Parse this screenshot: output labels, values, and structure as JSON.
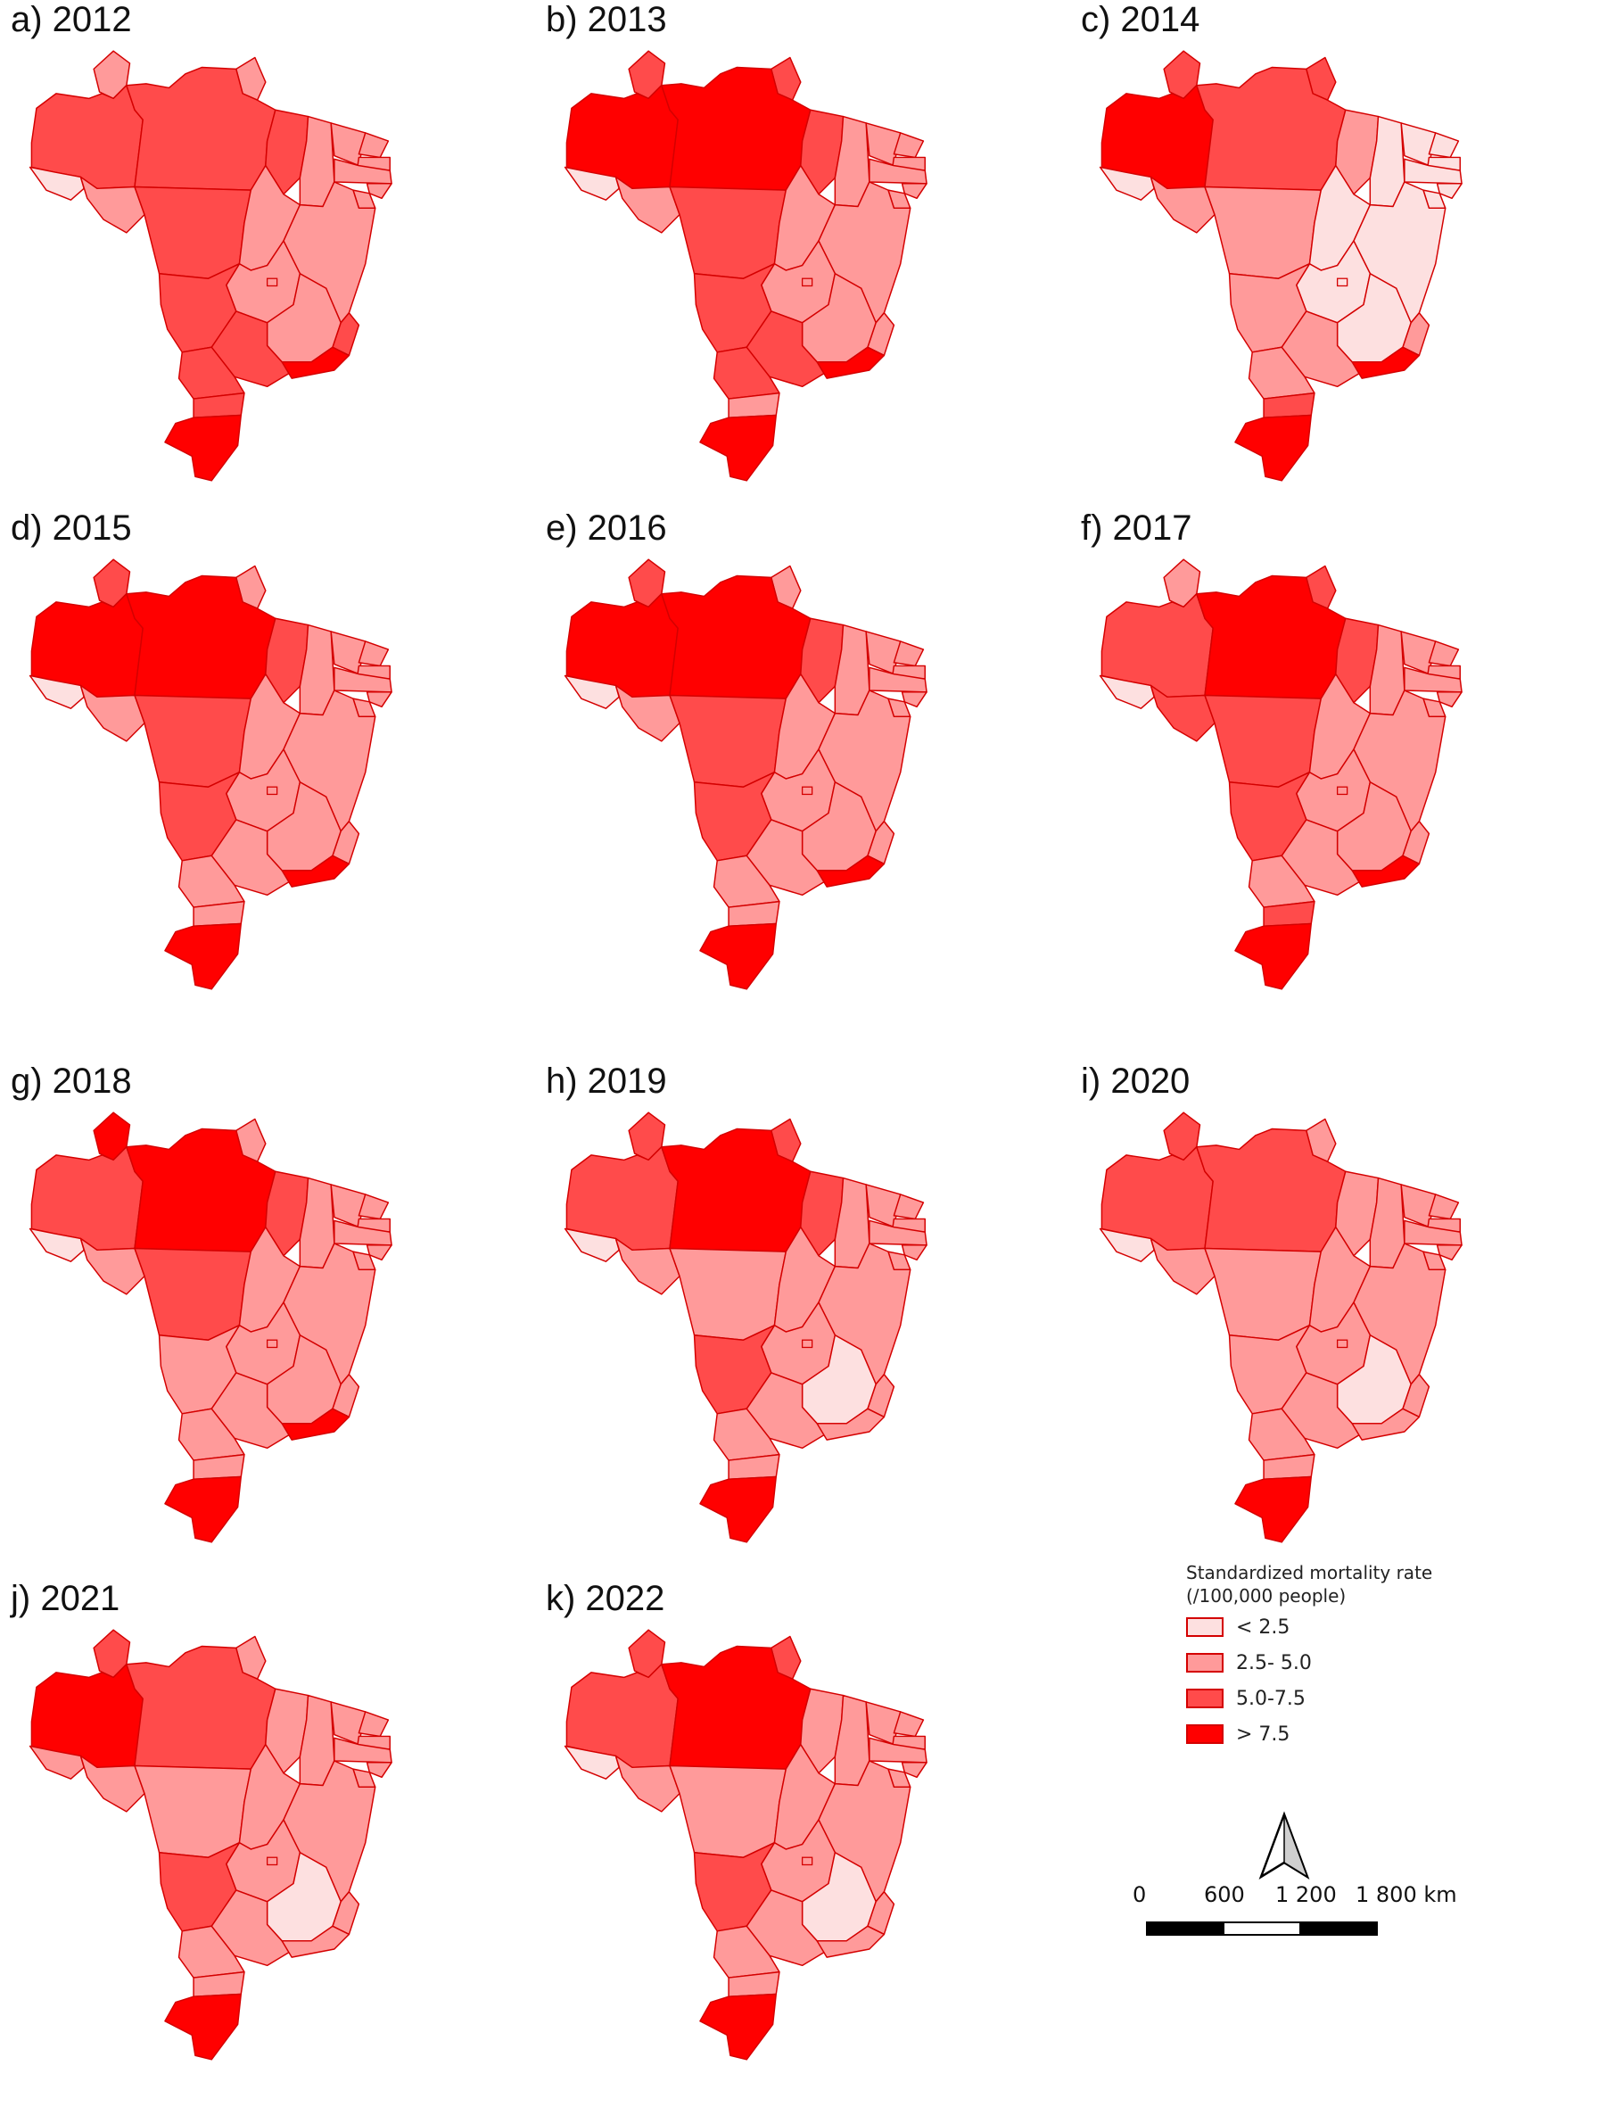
{
  "classes": [
    {
      "label": "< 2.5",
      "color": "#fde0e0"
    },
    {
      "label": "2.5- 5.0",
      "color": "#ff9a9a"
    },
    {
      "label": "5.0-7.5",
      "color": "#ff4b4b"
    },
    {
      "label": "> 7.5",
      "color": "#ff0000"
    }
  ],
  "border_color": "#d40000",
  "panels": [
    {
      "title": "a) 2012",
      "classes": {
        "AM": 2,
        "RR": 1,
        "PA": 2,
        "AP": 1,
        "AC": 0,
        "RO": 1,
        "MT": 2,
        "TO": 1,
        "MA": 2,
        "PI": 1,
        "CE": 1,
        "RN": 1,
        "PB": 1,
        "PE": 1,
        "AL": 1,
        "SE": 1,
        "BA": 1,
        "GO": 1,
        "MG": 1,
        "ES": 2,
        "MS": 2,
        "SP": 2,
        "RJ": 3,
        "PR": 2,
        "SC": 2,
        "RS": 3
      }
    },
    {
      "title": "b) 2013",
      "classes": {
        "AM": 3,
        "RR": 2,
        "PA": 3,
        "AP": 2,
        "AC": 0,
        "RO": 1,
        "MT": 2,
        "TO": 1,
        "MA": 2,
        "PI": 1,
        "CE": 1,
        "RN": 1,
        "PB": 1,
        "PE": 1,
        "AL": 1,
        "SE": 1,
        "BA": 1,
        "GO": 1,
        "MG": 1,
        "ES": 1,
        "MS": 2,
        "SP": 2,
        "RJ": 3,
        "PR": 2,
        "SC": 1,
        "RS": 3
      }
    },
    {
      "title": "c) 2014",
      "classes": {
        "AM": 3,
        "RR": 2,
        "PA": 2,
        "AP": 2,
        "AC": 0,
        "RO": 1,
        "MT": 1,
        "TO": 0,
        "MA": 1,
        "PI": 0,
        "CE": 0,
        "RN": 0,
        "PB": 0,
        "PE": 0,
        "AL": 0,
        "SE": 0,
        "BA": 0,
        "GO": 0,
        "MG": 0,
        "ES": 1,
        "MS": 1,
        "SP": 1,
        "RJ": 3,
        "PR": 1,
        "SC": 2,
        "RS": 3
      }
    },
    {
      "title": "d) 2015",
      "classes": {
        "AM": 3,
        "RR": 2,
        "PA": 3,
        "AP": 1,
        "AC": 0,
        "RO": 1,
        "MT": 2,
        "TO": 1,
        "MA": 2,
        "PI": 1,
        "CE": 1,
        "RN": 1,
        "PB": 1,
        "PE": 1,
        "AL": 1,
        "SE": 1,
        "BA": 1,
        "GO": 1,
        "MG": 1,
        "ES": 1,
        "MS": 2,
        "SP": 1,
        "RJ": 3,
        "PR": 1,
        "SC": 1,
        "RS": 3
      }
    },
    {
      "title": "e) 2016",
      "classes": {
        "AM": 3,
        "RR": 2,
        "PA": 3,
        "AP": 1,
        "AC": 0,
        "RO": 1,
        "MT": 2,
        "TO": 1,
        "MA": 2,
        "PI": 1,
        "CE": 1,
        "RN": 1,
        "PB": 1,
        "PE": 1,
        "AL": 1,
        "SE": 1,
        "BA": 1,
        "GO": 1,
        "MG": 1,
        "ES": 1,
        "MS": 2,
        "SP": 1,
        "RJ": 3,
        "PR": 1,
        "SC": 1,
        "RS": 3
      }
    },
    {
      "title": "f) 2017",
      "classes": {
        "AM": 2,
        "RR": 1,
        "PA": 3,
        "AP": 2,
        "AC": 0,
        "RO": 2,
        "MT": 2,
        "TO": 1,
        "MA": 2,
        "PI": 1,
        "CE": 1,
        "RN": 1,
        "PB": 1,
        "PE": 1,
        "AL": 1,
        "SE": 1,
        "BA": 1,
        "GO": 1,
        "MG": 1,
        "ES": 1,
        "MS": 2,
        "SP": 1,
        "RJ": 3,
        "PR": 1,
        "SC": 2,
        "RS": 3
      }
    },
    {
      "title": "g) 2018",
      "classes": {
        "AM": 2,
        "RR": 3,
        "PA": 3,
        "AP": 1,
        "AC": 0,
        "RO": 1,
        "MT": 2,
        "TO": 1,
        "MA": 2,
        "PI": 1,
        "CE": 1,
        "RN": 1,
        "PB": 1,
        "PE": 1,
        "AL": 1,
        "SE": 1,
        "BA": 1,
        "GO": 1,
        "MG": 1,
        "ES": 1,
        "MS": 1,
        "SP": 1,
        "RJ": 3,
        "PR": 1,
        "SC": 1,
        "RS": 3
      }
    },
    {
      "title": "h) 2019",
      "classes": {
        "AM": 2,
        "RR": 2,
        "PA": 3,
        "AP": 2,
        "AC": 0,
        "RO": 1,
        "MT": 1,
        "TO": 1,
        "MA": 2,
        "PI": 1,
        "CE": 1,
        "RN": 1,
        "PB": 1,
        "PE": 1,
        "AL": 1,
        "SE": 1,
        "BA": 1,
        "GO": 1,
        "MG": 0,
        "ES": 1,
        "MS": 2,
        "SP": 1,
        "RJ": 1,
        "PR": 1,
        "SC": 1,
        "RS": 3
      }
    },
    {
      "title": "i) 2020",
      "classes": {
        "AM": 2,
        "RR": 2,
        "PA": 2,
        "AP": 1,
        "AC": 0,
        "RO": 1,
        "MT": 1,
        "TO": 1,
        "MA": 1,
        "PI": 1,
        "CE": 1,
        "RN": 1,
        "PB": 1,
        "PE": 1,
        "AL": 1,
        "SE": 1,
        "BA": 1,
        "GO": 1,
        "MG": 0,
        "ES": 1,
        "MS": 1,
        "SP": 1,
        "RJ": 1,
        "PR": 1,
        "SC": 1,
        "RS": 3
      }
    },
    {
      "title": "j) 2021",
      "classes": {
        "AM": 3,
        "RR": 2,
        "PA": 2,
        "AP": 1,
        "AC": 1,
        "RO": 1,
        "MT": 1,
        "TO": 1,
        "MA": 1,
        "PI": 1,
        "CE": 1,
        "RN": 1,
        "PB": 1,
        "PE": 1,
        "AL": 1,
        "SE": 1,
        "BA": 1,
        "GO": 1,
        "MG": 0,
        "ES": 1,
        "MS": 2,
        "SP": 1,
        "RJ": 1,
        "PR": 1,
        "SC": 1,
        "RS": 3
      }
    },
    {
      "title": "k) 2022",
      "classes": {
        "AM": 2,
        "RR": 2,
        "PA": 3,
        "AP": 2,
        "AC": 0,
        "RO": 1,
        "MT": 1,
        "TO": 1,
        "MA": 1,
        "PI": 1,
        "CE": 1,
        "RN": 1,
        "PB": 1,
        "PE": 1,
        "AL": 1,
        "SE": 1,
        "BA": 1,
        "GO": 1,
        "MG": 0,
        "ES": 1,
        "MS": 2,
        "SP": 1,
        "RJ": 1,
        "PR": 1,
        "SC": 1,
        "RS": 3
      }
    }
  ],
  "legend": {
    "title_line1": "Standardized mortality rate",
    "title_line2": "(/100,000 people)"
  },
  "north_arrow": {
    "icon": "north-arrow-icon"
  },
  "scale": {
    "labels": [
      "0",
      "600",
      "1 200",
      "1 800 km"
    ]
  }
}
